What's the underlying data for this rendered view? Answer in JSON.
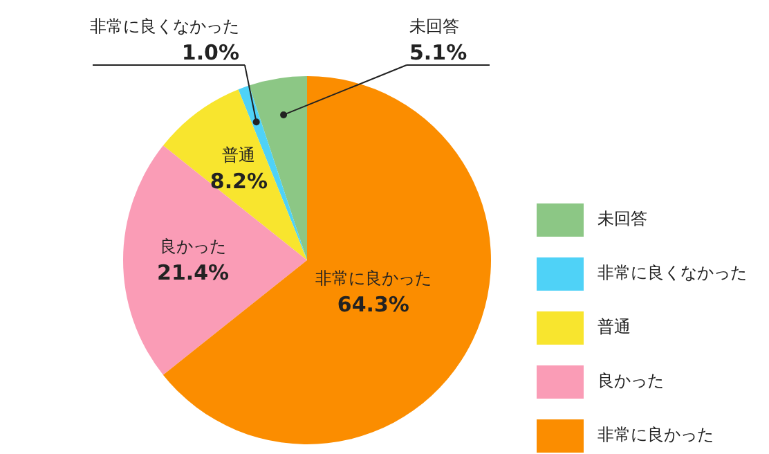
{
  "chart_data": {
    "type": "pie",
    "categories": [
      "未回答",
      "非常に良くなかった",
      "普通",
      "良かった",
      "非常に良かった"
    ],
    "values": [
      5.1,
      1.0,
      8.2,
      21.4,
      64.3
    ],
    "value_labels": [
      "5.1%",
      "1.0%",
      "8.2%",
      "21.4%",
      "64.3%"
    ],
    "colors": [
      "#8cc785",
      "#4fd2f7",
      "#f8e52e",
      "#fa9cb6",
      "#fb8d00"
    ],
    "legend": "right"
  }
}
